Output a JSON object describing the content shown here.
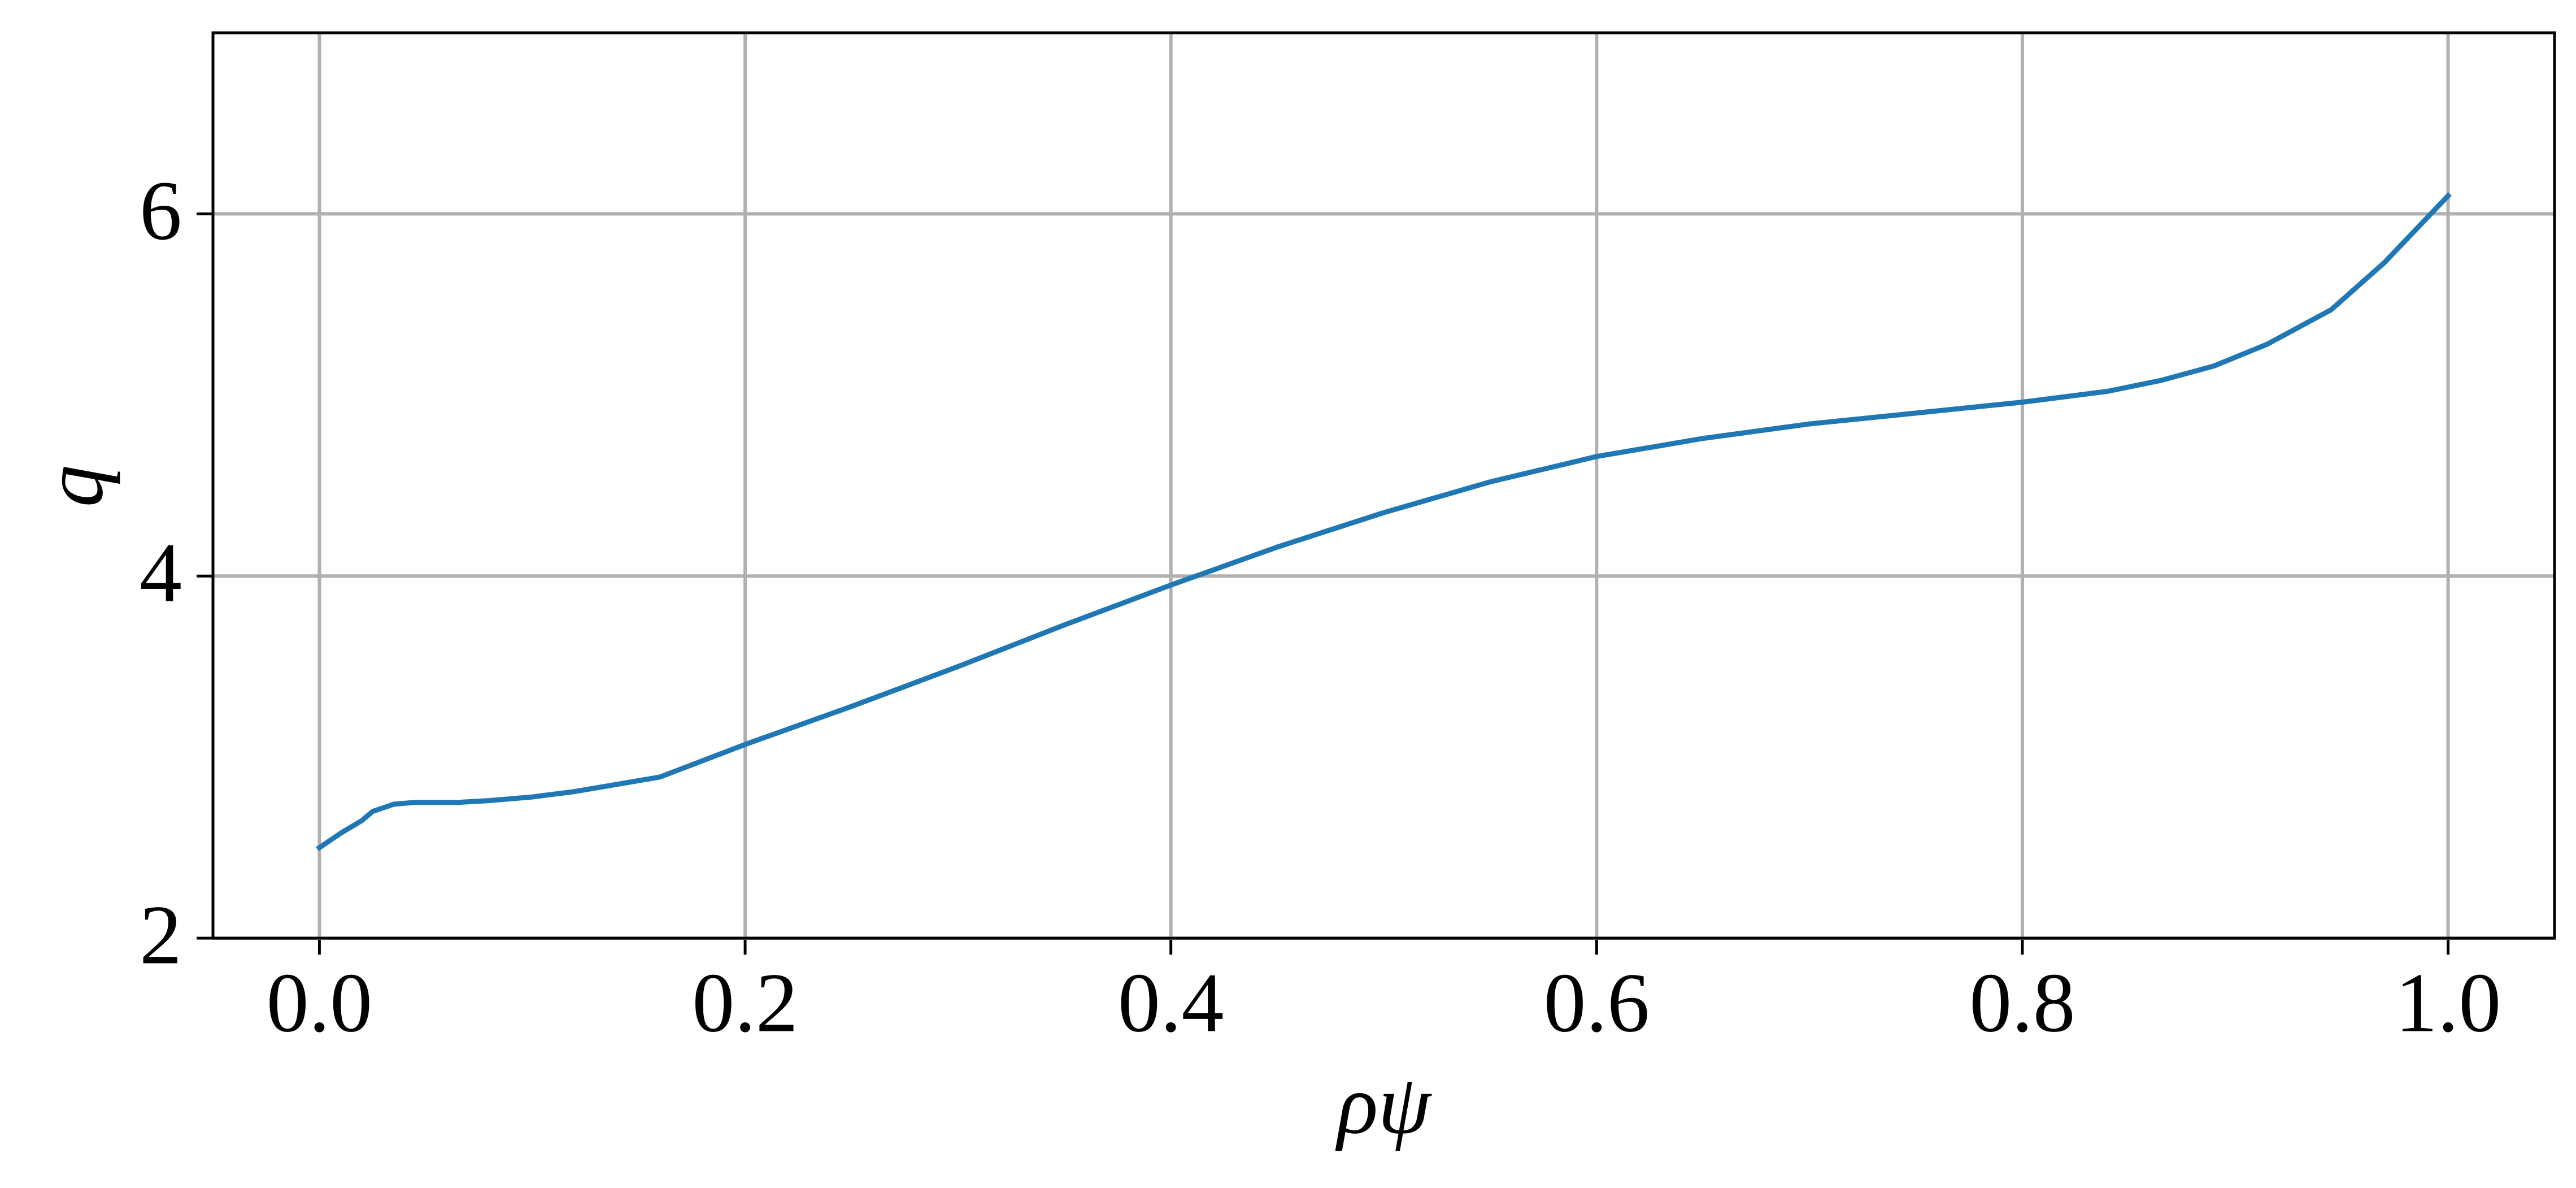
{
  "chart_data": {
    "type": "line",
    "xlabel": "ρψ",
    "ylabel": "q",
    "series": [
      {
        "color": "#1f77b4",
        "x": [
          0.0,
          0.01,
          0.02,
          0.025,
          0.035,
          0.045,
          0.065,
          0.08,
          0.1,
          0.12,
          0.14,
          0.16,
          0.2,
          0.25,
          0.3,
          0.35,
          0.4,
          0.45,
          0.5,
          0.55,
          0.6,
          0.65,
          0.7,
          0.75,
          0.8,
          0.84,
          0.865,
          0.89,
          0.915,
          0.945,
          0.97,
          1.0
        ],
        "values": [
          2.5,
          2.58,
          2.65,
          2.7,
          2.74,
          2.75,
          2.75,
          2.76,
          2.78,
          2.81,
          2.85,
          2.89,
          3.07,
          3.28,
          3.5,
          3.73,
          3.95,
          4.16,
          4.35,
          4.52,
          4.66,
          4.76,
          4.84,
          4.9,
          4.96,
          5.02,
          5.08,
          5.16,
          5.28,
          5.47,
          5.73,
          6.1
        ]
      }
    ],
    "xlim": [
      -0.05,
      1.05
    ],
    "ylim": [
      2,
      7
    ],
    "xticks": [
      {
        "value": 0,
        "label": "0.0"
      },
      {
        "value": 0.2,
        "label": "0.2"
      },
      {
        "value": 0.4,
        "label": "0.4"
      },
      {
        "value": 0.6,
        "label": "0.6"
      },
      {
        "value": 0.8,
        "label": "0.8"
      },
      {
        "value": 1,
        "label": "1.0"
      }
    ],
    "yticks": [
      2,
      4,
      6
    ],
    "grid": true
  }
}
